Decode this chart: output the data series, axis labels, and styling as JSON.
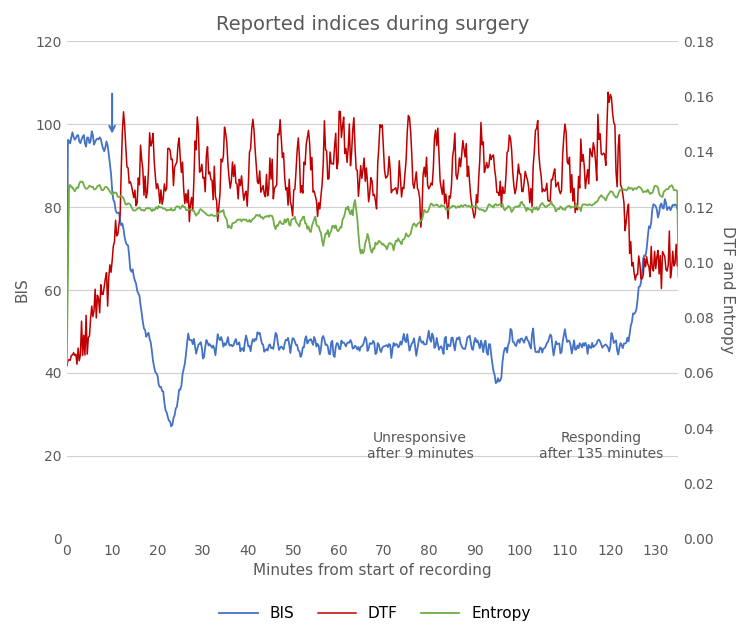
{
  "title": "Reported indices during surgery",
  "xlabel": "Minutes from start of recording",
  "ylabel_left": "BIS",
  "ylabel_right": "DTF and Entropy",
  "xlim": [
    0,
    135
  ],
  "ylim_left": [
    0,
    120
  ],
  "ylim_right": [
    0,
    0.18
  ],
  "yticks_left": [
    0,
    20,
    40,
    60,
    80,
    100,
    120
  ],
  "yticks_right": [
    0,
    0.02,
    0.04,
    0.06,
    0.08,
    0.1,
    0.12,
    0.14,
    0.16,
    0.18
  ],
  "xticks": [
    0,
    10,
    20,
    30,
    40,
    50,
    60,
    70,
    80,
    90,
    100,
    110,
    120,
    130
  ],
  "colors": {
    "BIS": "#4472C4",
    "DTF": "#C00000",
    "Entropy": "#70AD47"
  },
  "legend_labels": [
    "BIS",
    "DTF",
    "Entropy"
  ]
}
